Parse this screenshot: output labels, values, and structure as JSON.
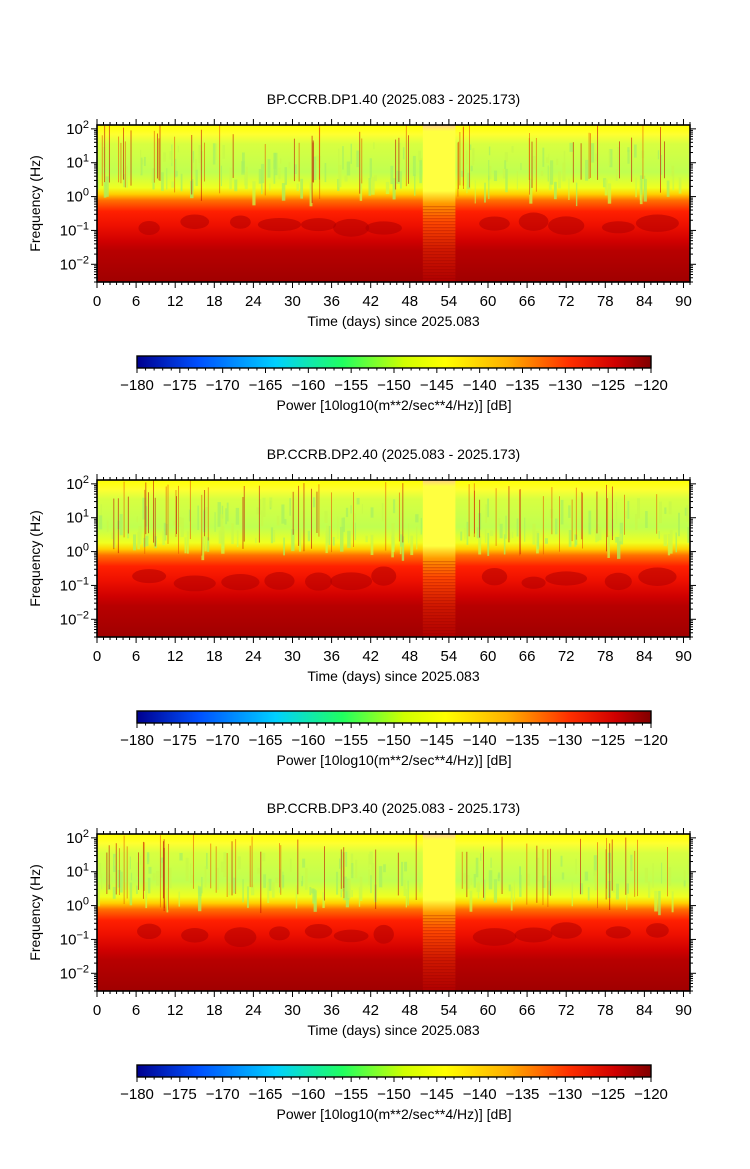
{
  "chart_data": [
    {
      "type": "heatmap",
      "title": "BP.CCRB.DP1.40 (2025.083 - 2025.173)",
      "xlabel": "Time (days) since 2025.083",
      "ylabel": "Frequency (Hz)",
      "xlim": [
        0,
        91
      ],
      "ylim": [
        0.003,
        130
      ],
      "yscale": "log",
      "xticks": [
        "0",
        "6",
        "12",
        "18",
        "24",
        "30",
        "36",
        "42",
        "48",
        "54",
        "60",
        "66",
        "72",
        "78",
        "84",
        "90"
      ],
      "yticks": [
        "10^-2",
        "10^-1",
        "10^0",
        "10^1",
        "10^2"
      ],
      "bands": [
        {
          "freq_range": [
            1.5,
            130
          ],
          "power_db": [
            -150,
            -146
          ]
        },
        {
          "freq_range": [
            0.6,
            1.5
          ],
          "power_db": [
            -135,
            -128
          ]
        },
        {
          "freq_range": [
            0.06,
            0.6
          ],
          "power_db": [
            -128,
            -122
          ]
        },
        {
          "freq_range": [
            0.003,
            0.06
          ],
          "power_db": [
            -122,
            -120
          ]
        }
      ],
      "gap_days": [
        50,
        55
      ],
      "colorbar": {
        "min": -180,
        "max": -120,
        "ticks": [
          "−180",
          "−175",
          "−170",
          "−165",
          "−160",
          "−155",
          "−150",
          "−145",
          "−140",
          "−135",
          "−130",
          "−125",
          "−120"
        ],
        "label": "Power [10log10(m**2/sec**4/Hz)] [dB]"
      }
    },
    {
      "type": "heatmap",
      "title": "BP.CCRB.DP2.40 (2025.083 - 2025.173)",
      "xlabel": "Time (days) since 2025.083",
      "ylabel": "Frequency (Hz)",
      "xlim": [
        0,
        91
      ],
      "ylim": [
        0.003,
        130
      ],
      "yscale": "log",
      "xticks": [
        "0",
        "6",
        "12",
        "18",
        "24",
        "30",
        "36",
        "42",
        "48",
        "54",
        "60",
        "66",
        "72",
        "78",
        "84",
        "90"
      ],
      "yticks": [
        "10^-2",
        "10^-1",
        "10^0",
        "10^1",
        "10^2"
      ],
      "bands": [
        {
          "freq_range": [
            1.5,
            130
          ],
          "power_db": [
            -150,
            -146
          ]
        },
        {
          "freq_range": [
            0.6,
            1.5
          ],
          "power_db": [
            -135,
            -128
          ]
        },
        {
          "freq_range": [
            0.06,
            0.6
          ],
          "power_db": [
            -128,
            -122
          ]
        },
        {
          "freq_range": [
            0.003,
            0.06
          ],
          "power_db": [
            -122,
            -120
          ]
        }
      ],
      "gap_days": [
        50,
        55
      ],
      "colorbar": {
        "min": -180,
        "max": -120,
        "ticks": [
          "−180",
          "−175",
          "−170",
          "−165",
          "−160",
          "−155",
          "−150",
          "−145",
          "−140",
          "−135",
          "−130",
          "−125",
          "−120"
        ],
        "label": "Power [10log10(m**2/sec**4/Hz)] [dB]"
      }
    },
    {
      "type": "heatmap",
      "title": "BP.CCRB.DP3.40 (2025.083 - 2025.173)",
      "xlabel": "Time (days) since 2025.083",
      "ylabel": "Frequency (Hz)",
      "xlim": [
        0,
        91
      ],
      "ylim": [
        0.003,
        130
      ],
      "yscale": "log",
      "xticks": [
        "0",
        "6",
        "12",
        "18",
        "24",
        "30",
        "36",
        "42",
        "48",
        "54",
        "60",
        "66",
        "72",
        "78",
        "84",
        "90"
      ],
      "yticks": [
        "10^-2",
        "10^-1",
        "10^0",
        "10^1",
        "10^2"
      ],
      "bands": [
        {
          "freq_range": [
            1.5,
            130
          ],
          "power_db": [
            -150,
            -146
          ]
        },
        {
          "freq_range": [
            0.6,
            1.5
          ],
          "power_db": [
            -135,
            -128
          ]
        },
        {
          "freq_range": [
            0.06,
            0.6
          ],
          "power_db": [
            -128,
            -122
          ]
        },
        {
          "freq_range": [
            0.003,
            0.06
          ],
          "power_db": [
            -122,
            -120
          ]
        }
      ],
      "gap_days": [
        50,
        55
      ],
      "colorbar": {
        "min": -180,
        "max": -120,
        "ticks": [
          "−180",
          "−175",
          "−170",
          "−165",
          "−160",
          "−155",
          "−150",
          "−145",
          "−140",
          "−135",
          "−130",
          "−125",
          "−120"
        ],
        "label": "Power [10log10(m**2/sec**4/Hz)] [dB]"
      }
    }
  ]
}
